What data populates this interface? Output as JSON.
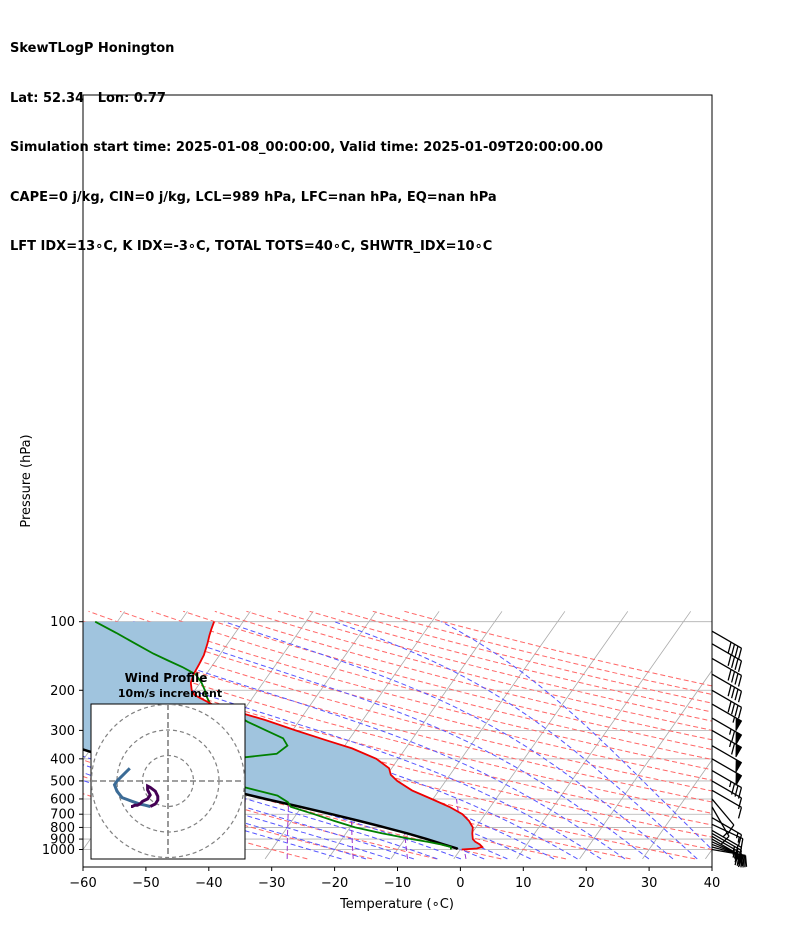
{
  "header": {
    "line1": "SkewTLogP Honington",
    "line2": "Lat: 52.34   Lon: 0.77",
    "line3": "Simulation start time: 2025-01-08_00:00:00, Valid time: 2025-01-09T20:00:00.00",
    "line4": "CAPE=0 j/kg, CIN=0 j/kg, LCL=989 hPa, LFC=nan hPa, EQ=nan hPa",
    "line5": "LFT IDX=13∘C, K IDX=-3∘C, TOTAL TOTS=40∘C, SHWTR_IDX=10∘C"
  },
  "chart_data": {
    "type": "line",
    "subtype": "skew-T log-P",
    "xlabel": "Temperature (∘C)",
    "ylabel": "Pressure (hPa)",
    "xlim": [
      -60,
      40
    ],
    "ylim": [
      1050,
      100
    ],
    "x_ticks": [
      "−60",
      "−50",
      "−40",
      "−30",
      "−20",
      "−10",
      "0",
      "10",
      "20",
      "30",
      "40"
    ],
    "x_tick_values": [
      -60,
      -50,
      -40,
      -30,
      -20,
      -10,
      0,
      10,
      20,
      30,
      40
    ],
    "y_ticks": [
      "100",
      "200",
      "300",
      "400",
      "500",
      "600",
      "700",
      "800",
      "900",
      "1000"
    ],
    "y_tick_values": [
      100,
      200,
      300,
      400,
      500,
      600,
      700,
      800,
      900,
      1000
    ],
    "grid": true,
    "colors": {
      "temperature": "#ee0000",
      "dewpoint": "#008000",
      "parcel": "#000000",
      "shade": "#a0c4de",
      "dry_adiabat": "#ff6666",
      "moist_adiabat": "#5555ff",
      "mixing_ratio": "#9933cc",
      "skew_isotherm": "#aaaaaa"
    },
    "series": [
      {
        "role": "temperature",
        "points": [
          [
            1000,
            0.2
          ],
          [
            990,
            2.5
          ],
          [
            975,
            3.2
          ],
          [
            950,
            2.5
          ],
          [
            925,
            1.5
          ],
          [
            900,
            0.8
          ],
          [
            850,
            0.1
          ],
          [
            800,
            -0.5
          ],
          [
            750,
            -1.8
          ],
          [
            700,
            -3.6
          ],
          [
            650,
            -6.5
          ],
          [
            600,
            -10.2
          ],
          [
            550,
            -14.3
          ],
          [
            500,
            -17.7
          ],
          [
            470,
            -19.4
          ],
          [
            440,
            -20.4
          ],
          [
            400,
            -23.5
          ],
          [
            360,
            -28.5
          ],
          [
            330,
            -33.8
          ],
          [
            300,
            -39.5
          ],
          [
            270,
            -45.5
          ],
          [
            250,
            -50.5
          ],
          [
            230,
            -55.8
          ],
          [
            210,
            -59.5
          ],
          [
            200,
            -60.5
          ],
          [
            185,
            -61.5
          ],
          [
            170,
            -62.0
          ],
          [
            155,
            -62.2
          ],
          [
            140,
            -62.5
          ],
          [
            125,
            -63.2
          ],
          [
            115,
            -63.8
          ],
          [
            108,
            -64.2
          ],
          [
            100,
            -64.6
          ]
        ]
      },
      {
        "role": "dewpoint",
        "points": [
          [
            1000,
            -1.5
          ],
          [
            975,
            -1.8
          ],
          [
            950,
            -3.7
          ],
          [
            925,
            -6.1
          ],
          [
            900,
            -8.9
          ],
          [
            850,
            -14.2
          ],
          [
            800,
            -19.2
          ],
          [
            750,
            -23.2
          ],
          [
            700,
            -27.2
          ],
          [
            650,
            -31.7
          ],
          [
            620,
            -32.7
          ],
          [
            580,
            -35.1
          ],
          [
            520,
            -43.1
          ],
          [
            480,
            -49.5
          ],
          [
            440,
            -56.1
          ],
          [
            410,
            -50.0
          ],
          [
            380,
            -39.9
          ],
          [
            350,
            -39.1
          ],
          [
            325,
            -40.6
          ],
          [
            300,
            -44.2
          ],
          [
            275,
            -48.1
          ],
          [
            250,
            -51.6
          ],
          [
            230,
            -56.0
          ],
          [
            210,
            -57.7
          ],
          [
            200,
            -58.4
          ],
          [
            185,
            -59.8
          ],
          [
            170,
            -61.7
          ],
          [
            158,
            -64.6
          ],
          [
            148,
            -67.6
          ],
          [
            138,
            -70.7
          ],
          [
            125,
            -74.6
          ],
          [
            112,
            -78.9
          ],
          [
            100,
            -83.5
          ]
        ]
      },
      {
        "role": "parcel",
        "points": [
          [
            1000,
            -0.5
          ],
          [
            989,
            -0.7
          ],
          [
            950,
            -3.2
          ],
          [
            900,
            -6.5
          ],
          [
            850,
            -10.2
          ],
          [
            800,
            -14.5
          ],
          [
            750,
            -19.2
          ],
          [
            700,
            -24.4
          ],
          [
            650,
            -30.2
          ],
          [
            600,
            -36.6
          ],
          [
            550,
            -43.3
          ],
          [
            500,
            -50.5
          ],
          [
            450,
            -58.0
          ],
          [
            400,
            -65.5
          ],
          [
            350,
            -73.5
          ],
          [
            300,
            -82.0
          ],
          [
            250,
            -91.0
          ],
          [
            200,
            -100.5
          ],
          [
            150,
            -111.0
          ],
          [
            100,
            -123.5
          ]
        ]
      }
    ],
    "wind_barbs": [
      {
        "p": 1000,
        "dir": 280,
        "speed_kt": 25
      },
      {
        "p": 975,
        "dir": 285,
        "speed_kt": 25
      },
      {
        "p": 950,
        "dir": 290,
        "speed_kt": 25
      },
      {
        "p": 925,
        "dir": 295,
        "speed_kt": 25
      },
      {
        "p": 900,
        "dir": 300,
        "speed_kt": 25
      },
      {
        "p": 875,
        "dir": 300,
        "speed_kt": 25
      },
      {
        "p": 850,
        "dir": 300,
        "speed_kt": 25
      },
      {
        "p": 825,
        "dir": 300,
        "speed_kt": 20
      },
      {
        "p": 775,
        "dir": 295,
        "speed_kt": 15
      },
      {
        "p": 725,
        "dir": 300,
        "speed_kt": 15
      },
      {
        "p": 650,
        "dir": 330,
        "speed_kt": 15
      },
      {
        "p": 600,
        "dir": 320,
        "speed_kt": 10
      },
      {
        "p": 550,
        "dir": 300,
        "speed_kt": 10
      },
      {
        "p": 500,
        "dir": 300,
        "speed_kt": 10
      },
      {
        "p": 450,
        "dir": 300,
        "speed_kt": 35
      },
      {
        "p": 400,
        "dir": 300,
        "speed_kt": 50
      },
      {
        "p": 350,
        "dir": 300,
        "speed_kt": 50
      },
      {
        "p": 300,
        "dir": 300,
        "speed_kt": 65
      },
      {
        "p": 265,
        "dir": 300,
        "speed_kt": 65
      },
      {
        "p": 230,
        "dir": 300,
        "speed_kt": 55
      },
      {
        "p": 200,
        "dir": 300,
        "speed_kt": 40
      },
      {
        "p": 170,
        "dir": 300,
        "speed_kt": 40
      },
      {
        "p": 145,
        "dir": 300,
        "speed_kt": 40
      },
      {
        "p": 125,
        "dir": 300,
        "speed_kt": 40
      },
      {
        "p": 110,
        "dir": 300,
        "speed_kt": 40
      }
    ]
  },
  "hodograph": {
    "title": "Wind Profile",
    "subtitle": "10m/s increment",
    "ring_speeds_ms": [
      10,
      20,
      30
    ],
    "trace_colors": [
      "#440154",
      "#3b6b96"
    ],
    "points_ms": [
      [
        -15,
        -5
      ],
      [
        -18,
        -2
      ],
      [
        -20,
        0
      ],
      [
        -21,
        1.5
      ],
      [
        -20,
        4
      ],
      [
        -18,
        6.5
      ],
      [
        -14,
        8
      ],
      [
        -11,
        9
      ],
      [
        -9,
        9.5
      ],
      [
        -7,
        10
      ],
      [
        -5,
        9
      ],
      [
        -4,
        7.5
      ],
      [
        -4,
        6
      ],
      [
        -5,
        4
      ],
      [
        -7,
        2.5
      ],
      [
        -8,
        2
      ],
      [
        -8,
        3.5
      ],
      [
        -7,
        5.5
      ],
      [
        -8,
        7
      ],
      [
        -10,
        8
      ],
      [
        -11,
        9
      ],
      [
        -12,
        9.5
      ],
      [
        -13,
        9.5
      ],
      [
        -14,
        10
      ],
      [
        -14.5,
        10
      ]
    ]
  }
}
